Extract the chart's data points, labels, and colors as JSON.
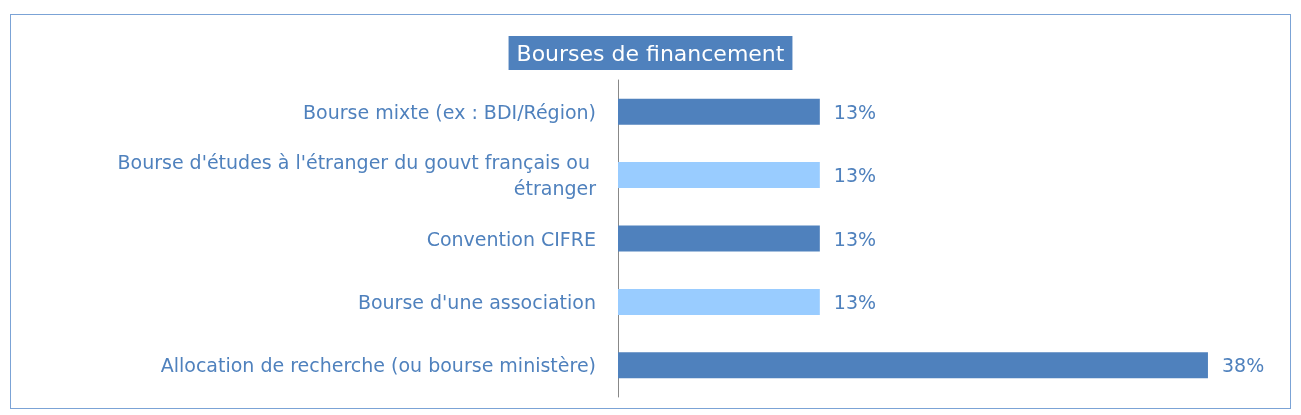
{
  "chart_data": {
    "type": "bar",
    "orientation": "horizontal",
    "title": "Bourses de financement",
    "categories": [
      "Bourse mixte (ex : BDI/Région)",
      "Bourse d'études à l'étranger du gouvt français ou étranger",
      "Convention CIFRE",
      "Bourse d'une association",
      "Allocation de recherche (ou bourse ministère)"
    ],
    "values": [
      13,
      13,
      13,
      13,
      38
    ],
    "colors": [
      "#4f81bd",
      "#99ccff",
      "#4f81bd",
      "#99ccff",
      "#4f81bd"
    ],
    "value_labels": [
      "13%",
      "13%",
      "13%",
      "13%",
      "38%"
    ]
  }
}
